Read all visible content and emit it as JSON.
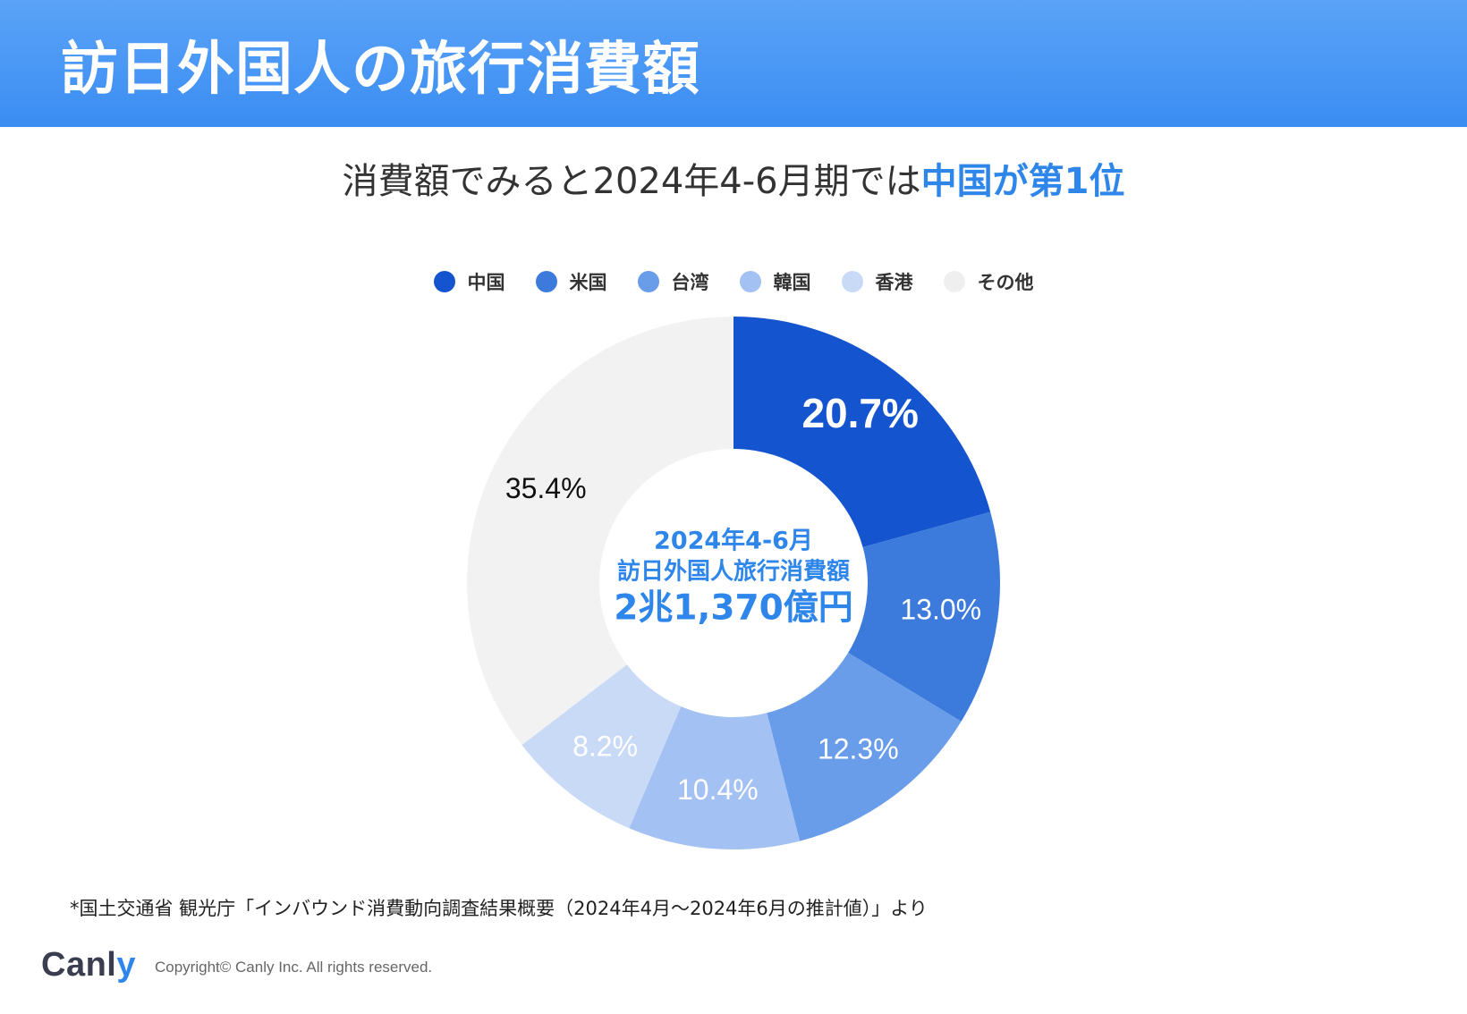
{
  "header": {
    "title": "訪日外国人の旅行消費額"
  },
  "subtitle": {
    "prefix": "消費額でみると2024年4-6月期では",
    "highlight": "中国が第1位"
  },
  "chart_data": {
    "type": "pie",
    "variant": "donut",
    "categories": [
      "中国",
      "米国",
      "台湾",
      "韓国",
      "香港",
      "その他"
    ],
    "values": [
      20.7,
      13.0,
      12.3,
      10.4,
      8.2,
      35.4
    ],
    "value_labels": [
      "20.7%",
      "13.0%",
      "12.3%",
      "10.4%",
      "8.2%",
      "35.4%"
    ],
    "colors": [
      "#1455cf",
      "#3c7bdb",
      "#6a9de9",
      "#a3c1f2",
      "#c9daf7",
      "#f2f2f2"
    ],
    "label_colors": [
      "#ffffff",
      "#ffffff",
      "#ffffff",
      "#ffffff",
      "#ffffff",
      "#111111"
    ],
    "legend_position": "top-center",
    "center_text": {
      "line1": "2024年4-6月",
      "line2": "訪日外国人旅行消費額",
      "line3": "2兆1,370億円"
    },
    "center_color": "#2f86ea"
  },
  "footnote": "*国土交通省 観光庁「インバウンド消費動向調査結果概要（2024年4月〜2024年6月の推計値）」より",
  "footer": {
    "brand_main": "Canl",
    "brand_accent": "y",
    "copyright": "Copyright© Canly Inc. All rights reserved."
  }
}
